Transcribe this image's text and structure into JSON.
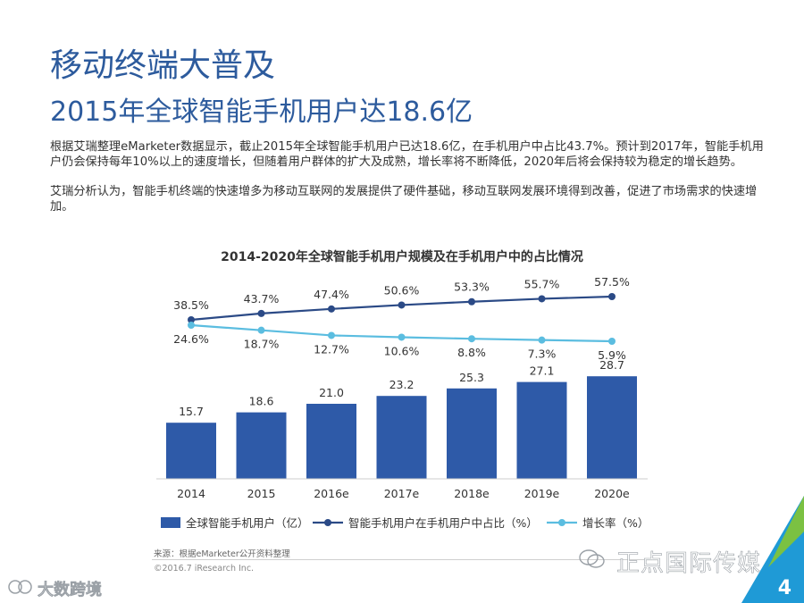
{
  "header": {
    "title": "移动终端大普及",
    "subtitle": "2015年全球智能手机用户达18.6亿"
  },
  "body": {
    "paragraph1": "根据艾瑞整理eMarketer数据显示，截止2015年全球智能手机用户已达18.6亿，在手机用户中占比43.7%。预计到2017年，智能手机用户仍会保持每年10%以上的速度增长，但随着用户群体的扩大及成熟，增长率将不断降低，2020年后将会保持较为稳定的增长趋势。",
    "paragraph2": "艾瑞分析认为，智能手机终端的快速增多为移动互联网的发展提供了硬件基础，移动互联网发展环境得到改善，促进了市场需求的快速增加。"
  },
  "chart_data": {
    "type": "bar",
    "title": "2014-2020年全球智能手机用户规模及在手机用户中的占比情况",
    "categories": [
      "2014",
      "2015",
      "2016e",
      "2017e",
      "2018e",
      "2019e",
      "2020e"
    ],
    "series": [
      {
        "name": "全球智能手机用户（亿）",
        "type": "bar",
        "values": [
          15.7,
          18.6,
          21.0,
          23.2,
          25.3,
          27.1,
          28.7
        ],
        "labels": [
          "15.7",
          "18.6",
          "21.0",
          "23.2",
          "25.3",
          "27.1",
          "28.7"
        ]
      },
      {
        "name": "智能手机用户在手机用户中占比（%）",
        "type": "line",
        "values": [
          38.5,
          43.7,
          47.4,
          50.6,
          53.3,
          55.7,
          57.5
        ],
        "labels": [
          "38.5%",
          "43.7%",
          "47.4%",
          "50.6%",
          "53.3%",
          "55.7%",
          "57.5%"
        ]
      },
      {
        "name": "增长率（%）",
        "type": "line",
        "values": [
          24.6,
          18.7,
          12.7,
          10.6,
          8.8,
          7.3,
          5.9
        ],
        "labels": [
          "24.6%",
          "18.7%",
          "12.7%",
          "10.6%",
          "8.8%",
          "7.3%",
          "5.9%"
        ]
      }
    ],
    "bar_ylim": [
      0,
      30
    ],
    "line_ylim": [
      0,
      70
    ],
    "legend_position": "bottom",
    "grid": false
  },
  "footer": {
    "source": "来源：根据eMarketer公开资料整理",
    "copyright": "©2016.7 iResearch Inc.",
    "watermark": "正点国际传媒",
    "bottom_left_mark": "大数跨境",
    "page_number": "4"
  },
  "colors": {
    "bar": "#2e5aa8",
    "share_line": "#2b4a86",
    "growth_line": "#5bbde0",
    "title": "#2d5b9d",
    "corner_green": "#7bc142",
    "corner_blue": "#1f9ad6"
  }
}
